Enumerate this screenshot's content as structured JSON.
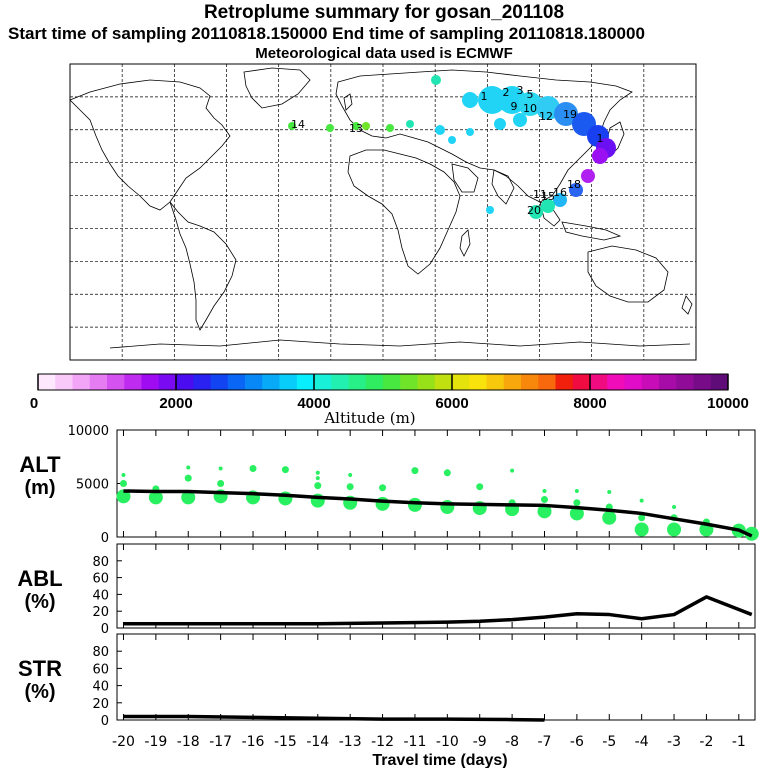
{
  "header": {
    "title": "Retroplume summary for gosan_201108",
    "sampling": "Start time of sampling 20110818.150000     End time of sampling 20110818.180000",
    "met": "Meteorological data used is ECMWF"
  },
  "colorbar": {
    "ticks": [
      "0",
      "2000",
      "4000",
      "6000",
      "8000",
      "10000"
    ],
    "label": "Altitude (m)",
    "colors": [
      "#fde8fd",
      "#f9c9fa",
      "#f2a5f6",
      "#e67cf2",
      "#d452ef",
      "#bf2cf0",
      "#a00cf2",
      "#7a0af2",
      "#4c0cf0",
      "#2a22f0",
      "#1244f2",
      "#0a66f4",
      "#0888f6",
      "#08aaf8",
      "#08ccfa",
      "#08eefc",
      "#18f0d8",
      "#22f0b0",
      "#28f088",
      "#30ec60",
      "#48e840",
      "#70e428",
      "#98e018",
      "#c0e010",
      "#e4e40c",
      "#f8e40c",
      "#f8c80c",
      "#f8a80c",
      "#f8880c",
      "#f8680c",
      "#f0200c",
      "#f00c40",
      "#f00c80",
      "#f00cb8",
      "#e00cc8",
      "#c80cb8",
      "#a80ca8",
      "#900c98",
      "#780c88",
      "#600c78"
    ]
  },
  "map": {
    "labels": [
      {
        "text": "1",
        "color": "#2bd8f5"
      },
      {
        "text": "2",
        "color": "#2bd8f5"
      },
      {
        "text": "3",
        "color": "#2bd8f5"
      },
      {
        "text": "5",
        "color": "#2bd8f5"
      },
      {
        "text": "9",
        "color": "#2a7df5"
      },
      {
        "text": "10",
        "color": "#2a7df5"
      },
      {
        "text": "12",
        "color": "#1a57f0"
      },
      {
        "text": "19",
        "color": "#1a57f0"
      },
      {
        "text": "20",
        "color": "#21e6b4"
      },
      {
        "text": "15",
        "color": "#21e6b4"
      },
      {
        "text": "11",
        "color": "#21e6b4"
      },
      {
        "text": "16",
        "color": "#2bd8f5"
      },
      {
        "text": "18",
        "color": "#2bd8f5"
      },
      {
        "text": "14",
        "color": "#2bd8f5"
      },
      {
        "text": "13",
        "color": "#2bd8f5"
      },
      {
        "text": "1",
        "color": "#2bd8f5"
      }
    ]
  },
  "panels": {
    "alt_label": [
      "ALT",
      "(m)"
    ],
    "abl_label": [
      "ABL",
      "(%)"
    ],
    "str_label": [
      "STR",
      "(%)"
    ],
    "xaxis_label": "Travel time (days)",
    "xticks": [
      "-20",
      "-19",
      "-18",
      "-17",
      "-16",
      "-15",
      "-14",
      "-13",
      "-12",
      "-11",
      "-10",
      "-9",
      "-8",
      "-7",
      "-6",
      "-5",
      "-4",
      "-3",
      "-2",
      "-1"
    ]
  },
  "chart_data": [
    {
      "type": "line",
      "title": "ALT",
      "ylabel": "(m)",
      "ylim": [
        0,
        10000
      ],
      "yticks": [
        "0",
        "5000",
        "10000"
      ],
      "xlim": [
        -20.2,
        -0.5
      ],
      "x": [
        -20,
        -19,
        -18,
        -17,
        -16,
        -15,
        -14,
        -13,
        -12,
        -11,
        -10,
        -9,
        -8,
        -7,
        -6,
        -5,
        -4,
        -3,
        -2,
        -1,
        -0.6
      ],
      "series": [
        {
          "name": "mean altitude",
          "values": [
            4300,
            4250,
            4250,
            4150,
            4050,
            3900,
            3700,
            3550,
            3350,
            3200,
            3100,
            3050,
            3000,
            2950,
            2750,
            2500,
            2200,
            1700,
            1200,
            650,
            100
          ]
        }
      ],
      "clusters": [
        {
          "x": -20,
          "y": [
            3800,
            5000,
            5800
          ]
        },
        {
          "x": -19,
          "y": [
            3700,
            4500
          ]
        },
        {
          "x": -18,
          "y": [
            3700,
            5500,
            6500
          ]
        },
        {
          "x": -17,
          "y": [
            3800,
            5000,
            6400
          ]
        },
        {
          "x": -16,
          "y": [
            3700,
            6400
          ]
        },
        {
          "x": -15,
          "y": [
            3600,
            6300
          ]
        },
        {
          "x": -14,
          "y": [
            3400,
            4800,
            5500,
            6000
          ]
        },
        {
          "x": -13,
          "y": [
            3200,
            4700,
            5800
          ]
        },
        {
          "x": -12,
          "y": [
            3100,
            4600
          ]
        },
        {
          "x": -11,
          "y": [
            3000,
            6200
          ]
        },
        {
          "x": -10,
          "y": [
            2800,
            6000
          ]
        },
        {
          "x": -9,
          "y": [
            2700,
            4700
          ]
        },
        {
          "x": -8,
          "y": [
            2600,
            3200,
            6200
          ]
        },
        {
          "x": -7,
          "y": [
            2400,
            3500,
            4300
          ]
        },
        {
          "x": -6,
          "y": [
            2200,
            3200,
            4300
          ]
        },
        {
          "x": -5,
          "y": [
            1800,
            2800,
            4200
          ]
        },
        {
          "x": -4,
          "y": [
            700,
            1800,
            3400
          ]
        },
        {
          "x": -3,
          "y": [
            700,
            1800,
            2800
          ]
        },
        {
          "x": -2,
          "y": [
            700,
            1400
          ]
        },
        {
          "x": -1,
          "y": [
            600
          ]
        },
        {
          "x": -0.6,
          "y": [
            300
          ]
        }
      ]
    },
    {
      "type": "line",
      "title": "ABL",
      "ylabel": "(%)",
      "ylim": [
        0,
        100
      ],
      "yticks": [
        "0",
        "20",
        "40",
        "60",
        "80"
      ],
      "xlim": [
        -20.2,
        -0.5
      ],
      "x": [
        -20,
        -18,
        -16,
        -14,
        -12,
        -10,
        -9,
        -8,
        -7,
        -6,
        -5,
        -4,
        -3,
        -2,
        -1,
        -0.6
      ],
      "series": [
        {
          "name": "ABL fraction",
          "values": [
            5,
            5,
            5,
            5,
            6,
            7,
            8,
            10,
            13,
            17,
            16,
            11,
            16,
            37,
            22,
            16
          ]
        }
      ]
    },
    {
      "type": "line",
      "title": "STR",
      "ylabel": "(%)",
      "ylim": [
        0,
        100
      ],
      "yticks": [
        "0",
        "20",
        "40",
        "60",
        "80"
      ],
      "xlim": [
        -20.2,
        -0.5
      ],
      "x": [
        -20,
        -18,
        -16,
        -14,
        -12,
        -10,
        -8,
        -7
      ],
      "series": [
        {
          "name": "STR fraction",
          "values": [
            4,
            4,
            3,
            2,
            1,
            1,
            0.5,
            0
          ]
        }
      ]
    }
  ]
}
